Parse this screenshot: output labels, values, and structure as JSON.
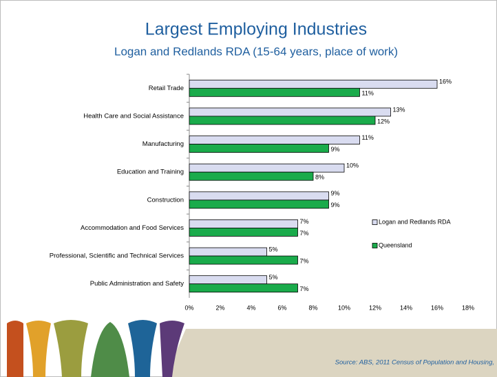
{
  "chart_data": {
    "type": "bar",
    "orientation": "horizontal",
    "title": "Largest Employing Industries",
    "subtitle": "Logan and Redlands RDA (15-64 years, place of work)",
    "categories": [
      "Retail Trade",
      "Health Care and Social Assistance",
      "Manufacturing",
      "Education and Training",
      "Construction",
      "Accommodation and Food Services",
      "Professional, Scientific and Technical Services",
      "Public Administration and Safety"
    ],
    "series": [
      {
        "name": "Logan and Redlands RDA",
        "color": "#d9dcf0",
        "values": [
          16,
          13,
          11,
          10,
          9,
          7,
          5,
          5
        ],
        "value_labels": [
          "16%",
          "13%",
          "11%",
          "10%",
          "9%",
          "7%",
          "5%",
          "5%"
        ]
      },
      {
        "name": "Queensland",
        "color": "#1aab4b",
        "values": [
          11,
          12,
          9,
          8,
          9,
          7,
          7,
          7
        ],
        "value_labels": [
          "11%",
          "12%",
          "9%",
          "8%",
          "9%",
          "7%",
          "7%",
          "7%"
        ]
      }
    ],
    "xlim": [
      0,
      18
    ],
    "xticks": [
      {
        "value": 0,
        "label": "0%"
      },
      {
        "value": 2,
        "label": "2%"
      },
      {
        "value": 4,
        "label": "4%"
      },
      {
        "value": 6,
        "label": "6%"
      },
      {
        "value": 8,
        "label": "8%"
      },
      {
        "value": 10,
        "label": "10%"
      },
      {
        "value": 12,
        "label": "12%"
      },
      {
        "value": 14,
        "label": "14%"
      },
      {
        "value": 16,
        "label": "16%"
      },
      {
        "value": 18,
        "label": "18%"
      }
    ],
    "grid": false,
    "legend": "right"
  },
  "source": "Source: ABS, 2011 Census of Population and Housing,"
}
